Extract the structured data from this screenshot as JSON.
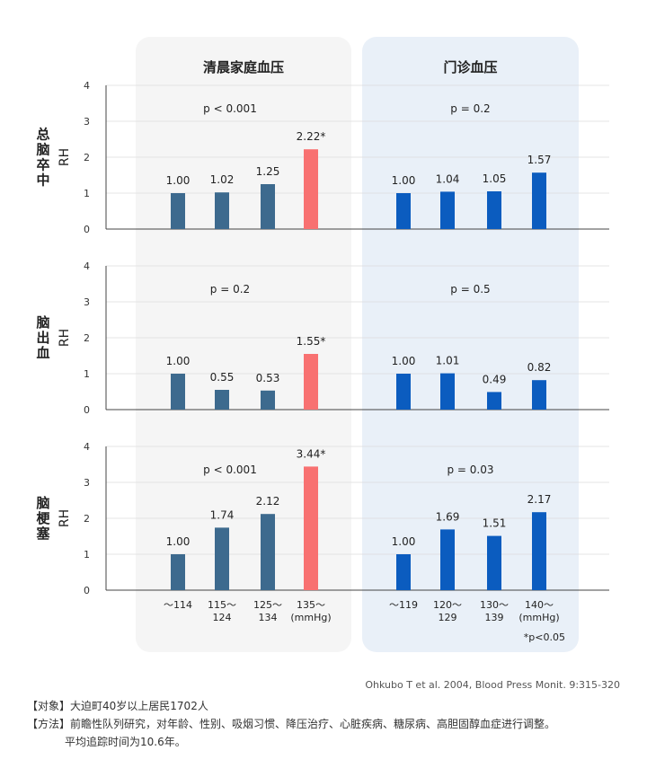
{
  "chart_data": {
    "type": "bar",
    "panels": [
      {
        "title": "清晨家庭血压",
        "categories": [
          "～114",
          "115～\n124",
          "125～\n134",
          "135～\n(mmHg)"
        ]
      },
      {
        "title": "门诊血压",
        "categories": [
          "～119",
          "120～\n129",
          "130～\n139",
          "140～\n(mmHg)"
        ]
      }
    ],
    "ylim": [
      0,
      4
    ],
    "yticks": [
      0,
      1,
      2,
      3,
      4
    ],
    "grid": true,
    "rows": [
      {
        "ylabel": "总脑卒中 RH",
        "groups": [
          {
            "values": [
              1.0,
              1.02,
              1.25,
              2.22
            ],
            "labels": [
              "1.00",
              "1.02",
              "1.25",
              "2.22*"
            ],
            "pvalue": "p < 0.001",
            "highlight": [
              false,
              false,
              false,
              true
            ]
          },
          {
            "values": [
              1.0,
              1.04,
              1.05,
              1.57
            ],
            "labels": [
              "1.00",
              "1.04",
              "1.05",
              "1.57"
            ],
            "pvalue": "p = 0.2",
            "highlight": [
              false,
              false,
              false,
              false
            ]
          }
        ]
      },
      {
        "ylabel": "脑出血 RH",
        "groups": [
          {
            "values": [
              1.0,
              0.55,
              0.53,
              1.55
            ],
            "labels": [
              "1.00",
              "0.55",
              "0.53",
              "1.55*"
            ],
            "pvalue": "p = 0.2",
            "highlight": [
              false,
              false,
              false,
              true
            ]
          },
          {
            "values": [
              1.0,
              1.01,
              0.49,
              0.82
            ],
            "labels": [
              "1.00",
              "1.01",
              "0.49",
              "0.82"
            ],
            "pvalue": "p = 0.5",
            "highlight": [
              false,
              false,
              false,
              false
            ]
          }
        ]
      },
      {
        "ylabel": "脑梗塞 RH",
        "groups": [
          {
            "values": [
              1.0,
              1.74,
              2.12,
              3.44
            ],
            "labels": [
              "1.00",
              "1.74",
              "2.12",
              "3.44*"
            ],
            "pvalue": "p < 0.001",
            "highlight": [
              false,
              false,
              false,
              true
            ]
          },
          {
            "values": [
              1.0,
              1.69,
              1.51,
              2.17
            ],
            "labels": [
              "1.00",
              "1.69",
              "1.51",
              "2.17"
            ],
            "pvalue": "p = 0.03",
            "highlight": [
              false,
              false,
              false,
              false
            ]
          }
        ]
      }
    ],
    "significance_note": "*p<0.05",
    "colors": {
      "home_bar": "#3d6a8e",
      "home_highlight": "#f87171",
      "clinic_bar": "#0b5cbf",
      "home_panel_bg": "#f5f5f5",
      "clinic_panel_bg": "#e9f0f8"
    }
  },
  "citation": "Ohkubo T et al. 2004, Blood Press Monit. 9:315-320",
  "notes": {
    "subject_label": "【对象】",
    "subject_text": "大迫町40岁以上居民1702人",
    "method_label": "【方法】",
    "method_text": "前瞻性队列研究，对年龄、性别、吸烟习惯、降压治疗、心脏疾病、糖尿病、高胆固醇血症进行调整。",
    "method_text_2": "平均追踪时间为10.6年。"
  }
}
